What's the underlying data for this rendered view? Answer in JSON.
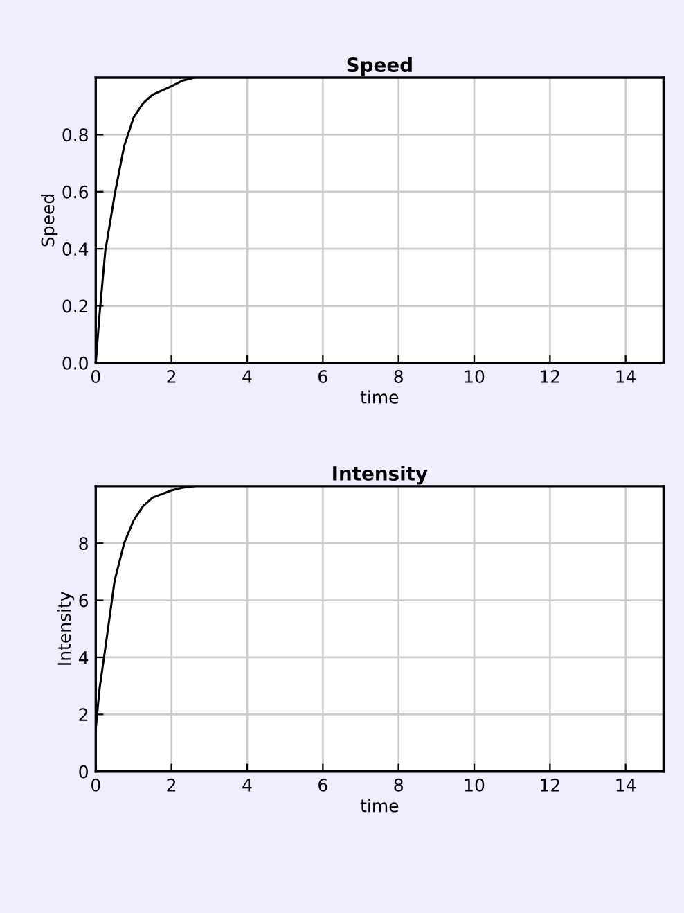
{
  "chart_data": [
    {
      "type": "line",
      "title": "Speed",
      "xlabel": "time",
      "ylabel": "Speed",
      "xlim": [
        0,
        15
      ],
      "ylim": [
        0,
        1
      ],
      "xticks": [
        0,
        2,
        4,
        6,
        8,
        10,
        12,
        14
      ],
      "yticks": [
        {
          "value": 0,
          "label": "0.0"
        },
        0.2,
        0.4,
        0.6,
        0.8
      ],
      "grid": true,
      "series": [
        {
          "color": "#000000",
          "x": [
            0,
            0.1,
            0.25,
            0.5,
            0.75,
            1,
            1.25,
            1.5,
            2,
            2.3,
            2.6
          ],
          "values": [
            0,
            0.17,
            0.39,
            0.59,
            0.76,
            0.86,
            0.91,
            0.94,
            0.97,
            0.99,
            1.0
          ]
        }
      ]
    },
    {
      "type": "line",
      "title": "Intensity",
      "xlabel": "time",
      "ylabel": "Intensity",
      "xlim": [
        0,
        15
      ],
      "ylim": [
        0,
        10
      ],
      "xticks": [
        0,
        2,
        4,
        6,
        8,
        10,
        12,
        14
      ],
      "yticks": [
        0,
        2,
        4,
        6,
        8
      ],
      "grid": true,
      "series": [
        {
          "color": "#000000",
          "x": [
            0,
            0.1,
            0.25,
            0.5,
            0.75,
            1,
            1.25,
            1.5,
            2,
            2.3,
            2.6
          ],
          "values": [
            1.5,
            2.9,
            4.3,
            6.7,
            8.0,
            8.8,
            9.3,
            9.6,
            9.85,
            9.95,
            10
          ]
        }
      ]
    }
  ]
}
